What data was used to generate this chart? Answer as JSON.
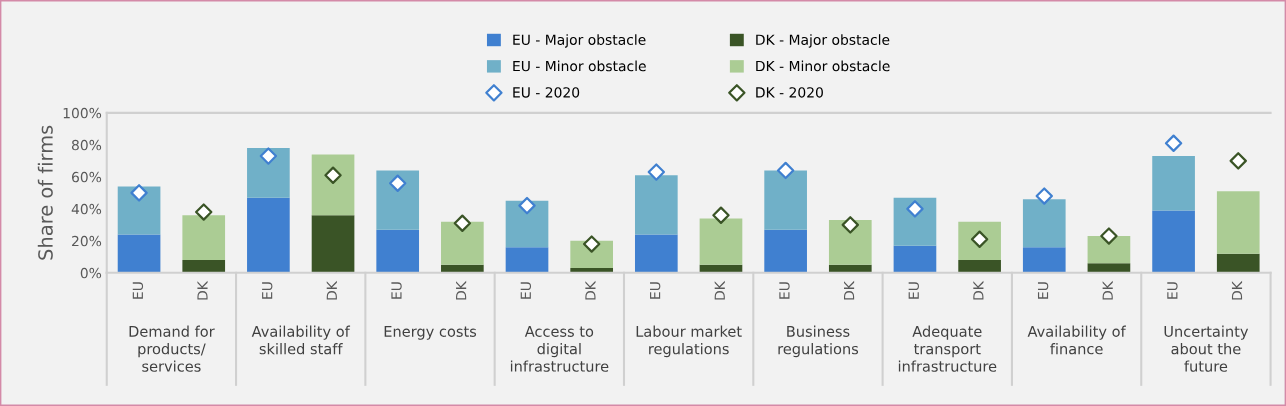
{
  "chart_data": {
    "type": "bar",
    "stacked": true,
    "ylabel": "Share of firms",
    "categories": [
      "EU",
      "DK",
      "EU",
      "DK",
      "EU",
      "DK",
      "EU",
      "DK",
      "EU",
      "DK",
      "EU",
      "DK",
      "EU",
      "DK",
      "EU",
      "DK",
      "EU",
      "DK"
    ],
    "annotations": [
      "Demand for products/ services",
      "Availability of skilled staff",
      "Energy costs",
      "Access to digital infrastructure",
      "Labour market regulations",
      "Business regulations",
      "Adequate transport infrastructure",
      "Availability of finance",
      "Uncertainty about the future"
    ],
    "series": [
      {
        "name": "EU - Major obstacle",
        "color": "#4080d0",
        "values": [
          24,
          null,
          47,
          null,
          27,
          null,
          16,
          null,
          24,
          null,
          27,
          null,
          17,
          null,
          16,
          null,
          39,
          null
        ]
      },
      {
        "name": "EU - Minor obstacle",
        "color": "#70b0c8",
        "values": [
          30,
          null,
          31,
          null,
          37,
          null,
          29,
          null,
          37,
          null,
          37,
          null,
          30,
          null,
          30,
          null,
          34,
          null
        ]
      },
      {
        "name": "EU - 2020",
        "type": "scatter",
        "marker": "diamond",
        "color": "#4080d0",
        "values": [
          50,
          null,
          73,
          null,
          56,
          null,
          42,
          null,
          63,
          null,
          64,
          null,
          40,
          null,
          48,
          null,
          81,
          null
        ]
      },
      {
        "name": "DK - Major obstacle",
        "color": "#3a5426",
        "values": [
          null,
          8,
          null,
          36,
          null,
          5,
          null,
          3,
          null,
          5,
          null,
          5,
          null,
          8,
          null,
          6,
          null,
          12
        ]
      },
      {
        "name": "DK - Minor obstacle",
        "color": "#abcc94",
        "values": [
          null,
          28,
          null,
          38,
          null,
          27,
          null,
          17,
          null,
          29,
          null,
          28,
          null,
          24,
          null,
          17,
          null,
          39
        ]
      },
      {
        "name": "DK - 2020",
        "type": "scatter",
        "marker": "diamond",
        "color": "#3a5426",
        "values": [
          null,
          38,
          null,
          61,
          null,
          31,
          null,
          18,
          null,
          36,
          null,
          30,
          null,
          21,
          null,
          23,
          null,
          70
        ]
      }
    ],
    "ylim": [
      0,
      100
    ],
    "yticks": [
      {
        "value": 0,
        "label": "0%"
      },
      {
        "value": 20,
        "label": "20%"
      },
      {
        "value": 40,
        "label": "40%"
      },
      {
        "value": 60,
        "label": "60%"
      },
      {
        "value": 80,
        "label": "80%"
      },
      {
        "value": 100,
        "label": "100%"
      }
    ],
    "grid": false,
    "legend": "top"
  }
}
